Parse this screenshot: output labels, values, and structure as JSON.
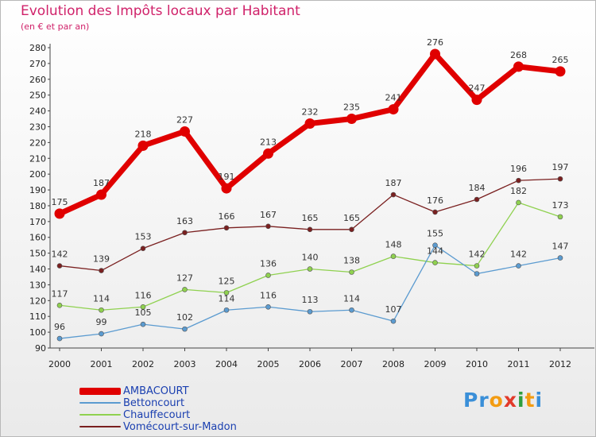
{
  "header": {
    "title": "Evolution des Impôts locaux par Habitant",
    "subtitle": "(en € et par an)"
  },
  "brand": {
    "name": "Proxiti",
    "letter_colors": [
      "#3a8fd8",
      "#3a8fd8",
      "#f39c12",
      "#e23a2a",
      "#2e9e3e",
      "#f39c12",
      "#3a8fd8"
    ]
  },
  "chart_data": {
    "type": "line",
    "title": "Evolution des Impôts locaux par Habitant",
    "subtitle": "(en € et par an)",
    "xlabel": "",
    "ylabel": "",
    "x": [
      2000,
      2001,
      2002,
      2003,
      2004,
      2005,
      2006,
      2007,
      2008,
      2009,
      2010,
      2011,
      2012
    ],
    "ylim": [
      90,
      280
    ],
    "yticks": [
      90,
      100,
      110,
      120,
      130,
      140,
      150,
      160,
      170,
      180,
      190,
      200,
      210,
      220,
      230,
      240,
      250,
      260,
      270,
      280
    ],
    "grid": false,
    "legend_position": "bottom-left",
    "series": [
      {
        "name": "AMBACOURT",
        "color": "#e00000",
        "line_width": "thick",
        "values": [
          175,
          187,
          218,
          227,
          191,
          213,
          232,
          235,
          241,
          276,
          247,
          268,
          265
        ],
        "labels": [
          "175",
          "187",
          "218",
          "227",
          "191",
          "213",
          "232",
          "235",
          "241",
          "276",
          "247",
          "268",
          "265"
        ]
      },
      {
        "name": "Bettoncourt",
        "color": "#5b9bd0",
        "line_width": "thin",
        "values": [
          96,
          99,
          105,
          102,
          114,
          116,
          113,
          114,
          107,
          155,
          137,
          142,
          147
        ],
        "labels": [
          "96",
          "99",
          "105",
          "102",
          "114",
          "116",
          "113",
          "114",
          "107",
          "155",
          "",
          "142",
          "147"
        ]
      },
      {
        "name": "Chauffecourt",
        "color": "#8fd14f",
        "line_width": "thin",
        "values": [
          117,
          114,
          116,
          127,
          125,
          136,
          140,
          138,
          148,
          144,
          142,
          182,
          173
        ],
        "labels": [
          "117",
          "114",
          "116",
          "127",
          "125",
          "136",
          "140",
          "138",
          "148",
          "144",
          "142",
          "182",
          "173"
        ]
      },
      {
        "name": "Vomécourt-sur-Madon",
        "color": "#7a2020",
        "line_width": "thin",
        "values": [
          142,
          139,
          153,
          163,
          166,
          167,
          165,
          165,
          187,
          176,
          184,
          196,
          197
        ],
        "labels": [
          "142",
          "139",
          "153",
          "163",
          "166",
          "167",
          "165",
          "165",
          "187",
          "176",
          "184",
          "196",
          "197"
        ]
      }
    ]
  }
}
